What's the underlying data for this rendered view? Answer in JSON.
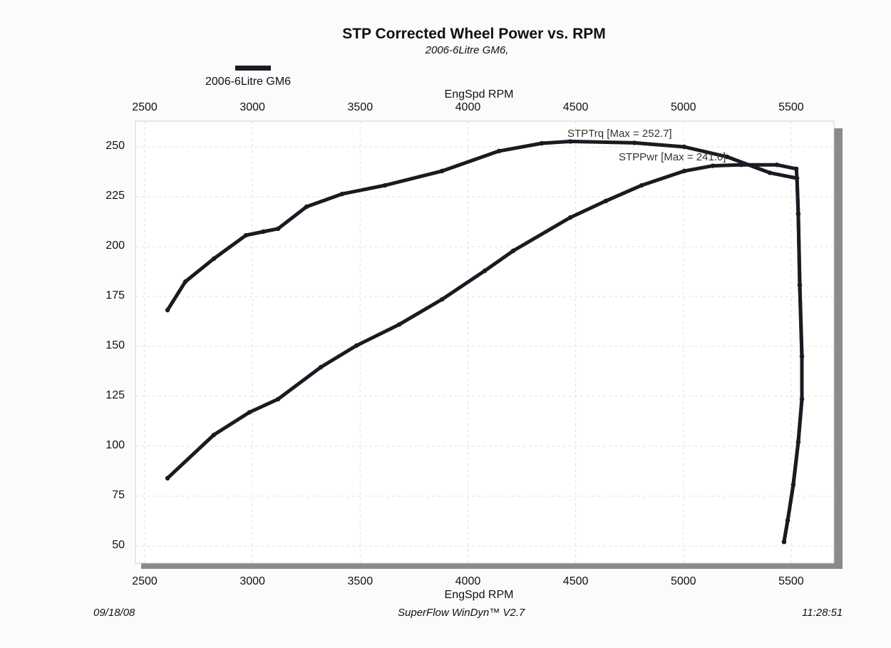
{
  "chart_data": {
    "type": "line",
    "title": "STP Corrected Wheel Power vs. RPM",
    "subtitle": "2006-6Litre GM6,",
    "legend": {
      "label": "2006-6Litre GM6",
      "placement": "top-left",
      "color": "#1a1a22"
    },
    "xlabel": "EngSpd  RPM",
    "xlim": [
      2500,
      5700
    ],
    "ylim": [
      40,
      262
    ],
    "x_ticks": [
      "2500",
      "3000",
      "3500",
      "4000",
      "4500",
      "5000",
      "5500"
    ],
    "y_ticks": [
      "250",
      "225",
      "200",
      "175",
      "150",
      "125",
      "100",
      "75",
      "50"
    ],
    "grid": true,
    "annotations": [
      "STPTrq [Max = 252.7]",
      "STPPwr [Max = 241.0]"
    ],
    "series": [
      {
        "name": "STPTrq",
        "color": "#1a1a22",
        "x": [
          2606,
          2689,
          2821,
          2970,
          3050,
          3119,
          3251,
          3416,
          3615,
          3880,
          4144,
          4343,
          4475,
          4773,
          5004,
          5203,
          5401,
          5527,
          5533,
          5540,
          5550,
          5550,
          5533,
          5510,
          5484,
          5467
        ],
        "y": [
          168.2,
          182.5,
          194,
          205.7,
          207.5,
          209,
          220,
          226.4,
          230.7,
          237.9,
          247.9,
          251.8,
          252.7,
          252,
          250,
          245,
          237,
          234.3,
          216.4,
          180.7,
          145,
          123.6,
          102.1,
          80.7,
          62.9,
          52.1
        ]
      },
      {
        "name": "STPPwr",
        "color": "#1a1a22",
        "x": [
          2606,
          2821,
          2986,
          3119,
          3317,
          3482,
          3681,
          3880,
          4078,
          4210,
          4475,
          4640,
          4806,
          5004,
          5136,
          5268,
          5434,
          5524,
          5527,
          5533,
          5540,
          5550,
          5550,
          5533,
          5510,
          5484,
          5467
        ],
        "y": [
          84,
          105.7,
          117,
          123.6,
          139.6,
          150.4,
          161,
          173.6,
          187.9,
          197.9,
          214.6,
          222.9,
          230.7,
          237.9,
          240.5,
          241,
          241,
          239,
          234.3,
          216.4,
          180.7,
          145,
          123.6,
          102.1,
          80.7,
          62.9,
          52.1
        ]
      }
    ]
  },
  "footer": {
    "date": "09/18/08",
    "software": "SuperFlow WinDyn™ V2.7",
    "time": "11:28:51"
  }
}
